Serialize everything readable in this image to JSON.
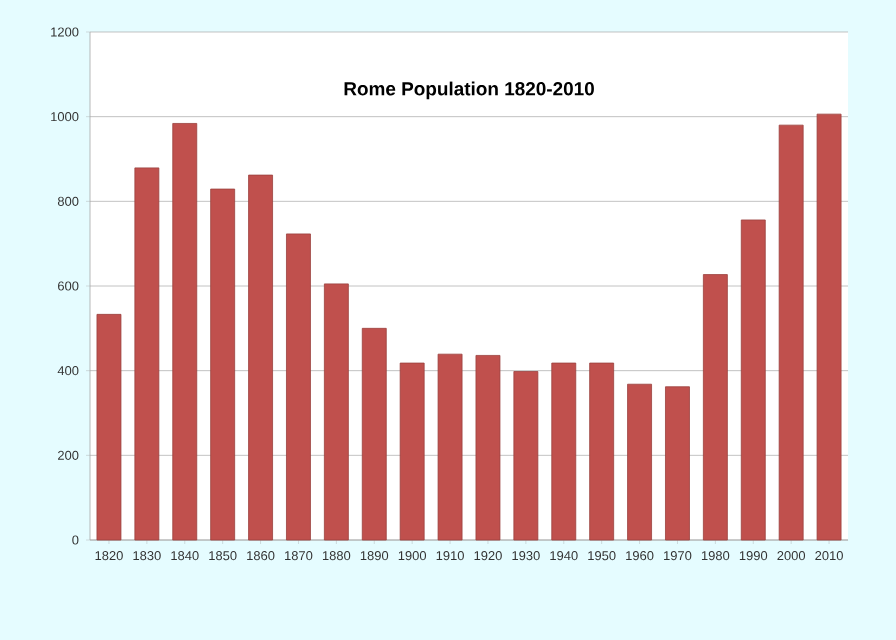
{
  "chart_data": {
    "type": "bar",
    "title": "Rome Population 1820-2010",
    "categories": [
      "1820",
      "1830",
      "1840",
      "1850",
      "1860",
      "1870",
      "1880",
      "1890",
      "1900",
      "1910",
      "1920",
      "1930",
      "1940",
      "1950",
      "1960",
      "1970",
      "1980",
      "1990",
      "2000",
      "2010"
    ],
    "values": [
      533,
      879,
      984,
      829,
      862,
      723,
      605,
      500,
      418,
      439,
      436,
      398,
      418,
      418,
      368,
      362,
      627,
      756,
      980,
      1006
    ],
    "color": "#c0504d",
    "ylim": [
      0,
      1200
    ],
    "yticks": [
      0,
      200,
      400,
      600,
      800,
      1000,
      1200
    ],
    "grid": "y"
  }
}
